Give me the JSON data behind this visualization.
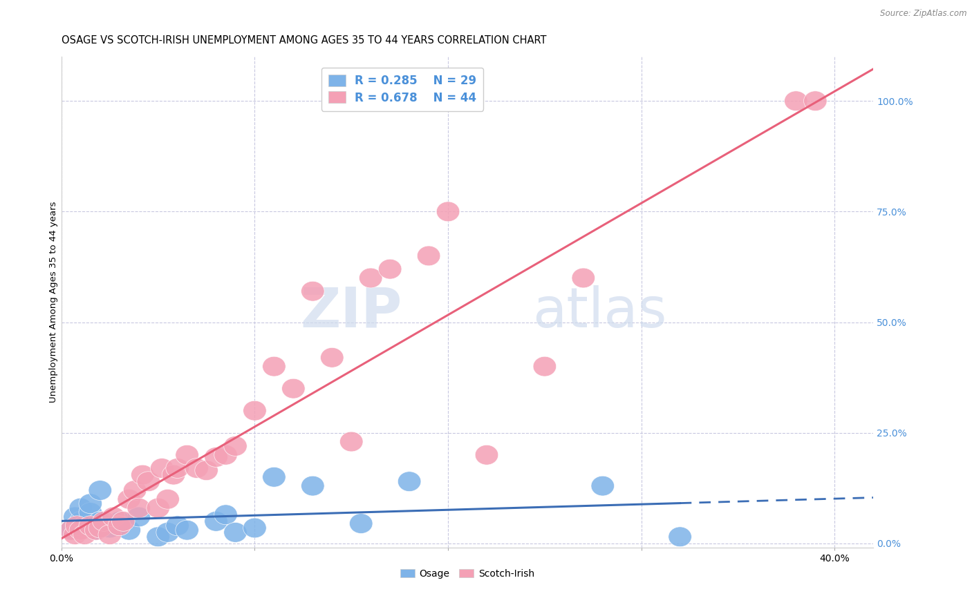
{
  "title": "OSAGE VS SCOTCH-IRISH UNEMPLOYMENT AMONG AGES 35 TO 44 YEARS CORRELATION CHART",
  "source": "Source: ZipAtlas.com",
  "ylabel": "Unemployment Among Ages 35 to 44 years",
  "xlim": [
    0.0,
    0.42
  ],
  "ylim": [
    -0.01,
    1.1
  ],
  "xticks": [
    0.0,
    0.1,
    0.2,
    0.3,
    0.4
  ],
  "xtick_labels": [
    "0.0%",
    "",
    "",
    "",
    "40.0%"
  ],
  "yticks": [
    0.0,
    0.25,
    0.5,
    0.75,
    1.0
  ],
  "ytick_labels": [
    "0.0%",
    "25.0%",
    "50.0%",
    "75.0%",
    "100.0%"
  ],
  "osage_color": "#7eb3e8",
  "scotchirish_color": "#f4a0b5",
  "osage_line_color": "#3b6db5",
  "scotchirish_line_color": "#e8607a",
  "R_osage": 0.285,
  "N_osage": 29,
  "R_scotchirish": 0.678,
  "N_scotchirish": 44,
  "legend_text_color": "#4a90d9",
  "watermark_zip": "ZIP",
  "watermark_atlas": "atlas",
  "osage_x": [
    0.005,
    0.007,
    0.01,
    0.01,
    0.012,
    0.015,
    0.015,
    0.018,
    0.02,
    0.02,
    0.025,
    0.03,
    0.03,
    0.035,
    0.04,
    0.05,
    0.055,
    0.06,
    0.065,
    0.08,
    0.085,
    0.09,
    0.1,
    0.11,
    0.13,
    0.155,
    0.18,
    0.28,
    0.32
  ],
  "osage_y": [
    0.03,
    0.06,
    0.05,
    0.08,
    0.04,
    0.07,
    0.09,
    0.03,
    0.05,
    0.12,
    0.035,
    0.04,
    0.05,
    0.03,
    0.06,
    0.015,
    0.025,
    0.04,
    0.03,
    0.05,
    0.065,
    0.025,
    0.035,
    0.15,
    0.13,
    0.045,
    0.14,
    0.13,
    0.015
  ],
  "scotchirish_x": [
    0.005,
    0.007,
    0.008,
    0.01,
    0.012,
    0.015,
    0.018,
    0.02,
    0.022,
    0.025,
    0.027,
    0.03,
    0.032,
    0.035,
    0.038,
    0.04,
    0.042,
    0.045,
    0.05,
    0.052,
    0.055,
    0.058,
    0.06,
    0.065,
    0.07,
    0.075,
    0.08,
    0.085,
    0.09,
    0.1,
    0.11,
    0.12,
    0.13,
    0.14,
    0.15,
    0.16,
    0.17,
    0.19,
    0.2,
    0.22,
    0.25,
    0.27,
    0.38,
    0.39
  ],
  "scotchirish_y": [
    0.03,
    0.02,
    0.04,
    0.03,
    0.02,
    0.04,
    0.03,
    0.035,
    0.05,
    0.02,
    0.06,
    0.04,
    0.05,
    0.1,
    0.12,
    0.08,
    0.155,
    0.14,
    0.08,
    0.17,
    0.1,
    0.155,
    0.17,
    0.2,
    0.17,
    0.165,
    0.195,
    0.2,
    0.22,
    0.3,
    0.4,
    0.35,
    0.57,
    0.42,
    0.23,
    0.6,
    0.62,
    0.65,
    0.75,
    0.2,
    0.4,
    0.6,
    1.0,
    1.0
  ],
  "background_color": "#ffffff",
  "grid_color": "#c8c8e0",
  "title_fontsize": 10.5,
  "axis_label_fontsize": 9.5,
  "tick_fontsize": 10,
  "marker_size": 120
}
